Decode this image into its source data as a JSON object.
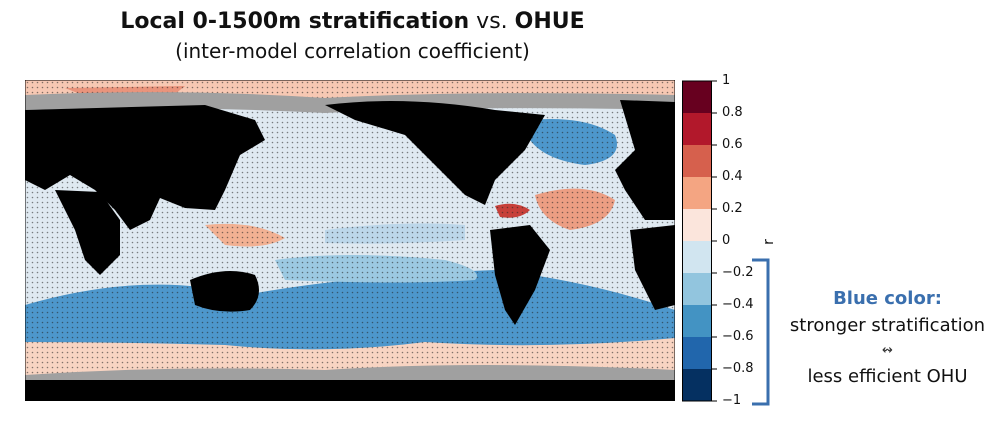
{
  "title": {
    "bold_part": "Local 0-1500m stratification",
    "middle": " vs. ",
    "bold_tail": "OHUE",
    "subtitle": "(inter-model correlation coefficient)"
  },
  "colorbar": {
    "ticks": [
      "1",
      "0.8",
      "0.6",
      "0.4",
      "0.2",
      "0",
      "−0.2",
      "−0.4",
      "−0.6",
      "−0.8",
      "−1"
    ],
    "label": "r",
    "colors": [
      "#67001f",
      "#b2182b",
      "#d6604d",
      "#f4a582",
      "#fddbc7",
      "#e9f1f7",
      "#bcd7ea",
      "#92c5de",
      "#4393c3",
      "#2166ac",
      "#053061"
    ]
  },
  "annotation": {
    "heading": "Blue color:",
    "line1": "stronger stratification",
    "symbol": "↭",
    "line2": "less efficient OHU",
    "bracket_color": "#3a6fae"
  },
  "map": {
    "land_color": "#000000",
    "seaice_color": "#a0a0a0"
  }
}
